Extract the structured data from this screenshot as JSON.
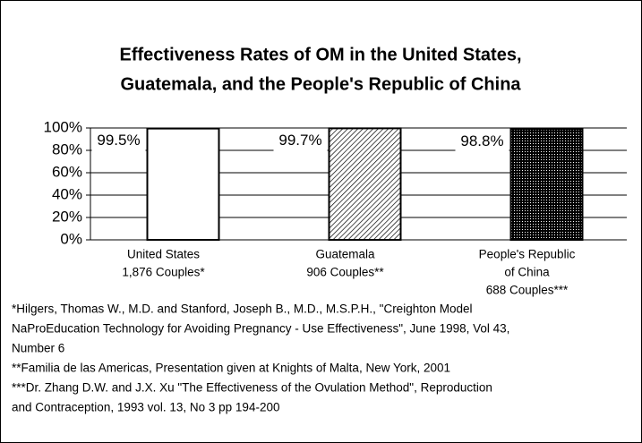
{
  "chart_data": {
    "type": "bar",
    "title": [
      "Effectiveness Rates of OM in the United States,",
      "Guatemala, and the People's Republic of China"
    ],
    "categories": [
      [
        "United States",
        "1,876 Couples*"
      ],
      [
        "Guatemala",
        "906 Couples**"
      ],
      [
        "People's Republic",
        "of China",
        "688 Couples***"
      ]
    ],
    "values": [
      99.5,
      99.7,
      98.8
    ],
    "value_labels": [
      "99.5%",
      "99.7%",
      "98.8%"
    ],
    "patterns": [
      "solid-white",
      "diagonal-hatch",
      "dots"
    ],
    "ylim": [
      0,
      100
    ],
    "yticks": [
      {
        "value": 0,
        "label": "0%"
      },
      {
        "value": 20,
        "label": "20%"
      },
      {
        "value": 40,
        "label": "40%"
      },
      {
        "value": 60,
        "label": "60%"
      },
      {
        "value": 80,
        "label": "80%"
      },
      {
        "value": 100,
        "label": "100%"
      }
    ],
    "grid": true,
    "footnotes": [
      "*Hilgers, Thomas W., M.D. and Stanford, Joseph B., M.D., M.S.P.H., \"Creighton Model",
      "NaProEducation Technology for Avoiding Pregnancy - Use Effectiveness\", June 1998, Vol 43,",
      "Number 6",
      "**Familia de las Americas, Presentation given at Knights of Malta, New York, 2001",
      "***Dr. Zhang D.W. and J.X. Xu \"The Effectiveness of the Ovulation Method\", Reproduction",
      "and Contraception, 1993 vol. 13, No 3 pp 194-200"
    ]
  }
}
